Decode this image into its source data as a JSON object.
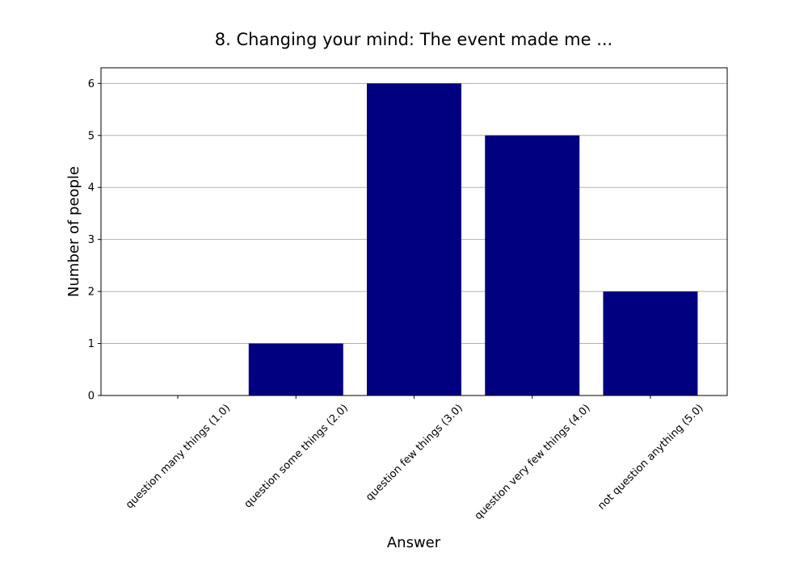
{
  "chart_data": {
    "type": "bar",
    "title": "8. Changing your mind: The event made me ...",
    "x_label": "Answer",
    "y_label": "Number of people",
    "categories": [
      "question many things (1.0)",
      "question some things (2.0)",
      "question few things (3.0)",
      "question very few things (4.0)",
      "not question anything (5.0)"
    ],
    "values": [
      0,
      1,
      6,
      5,
      2
    ],
    "color": "#000080",
    "ylim": [
      0,
      6.3
    ],
    "yticks": [
      0,
      1,
      2,
      3,
      4,
      5,
      6
    ],
    "grid": true
  }
}
